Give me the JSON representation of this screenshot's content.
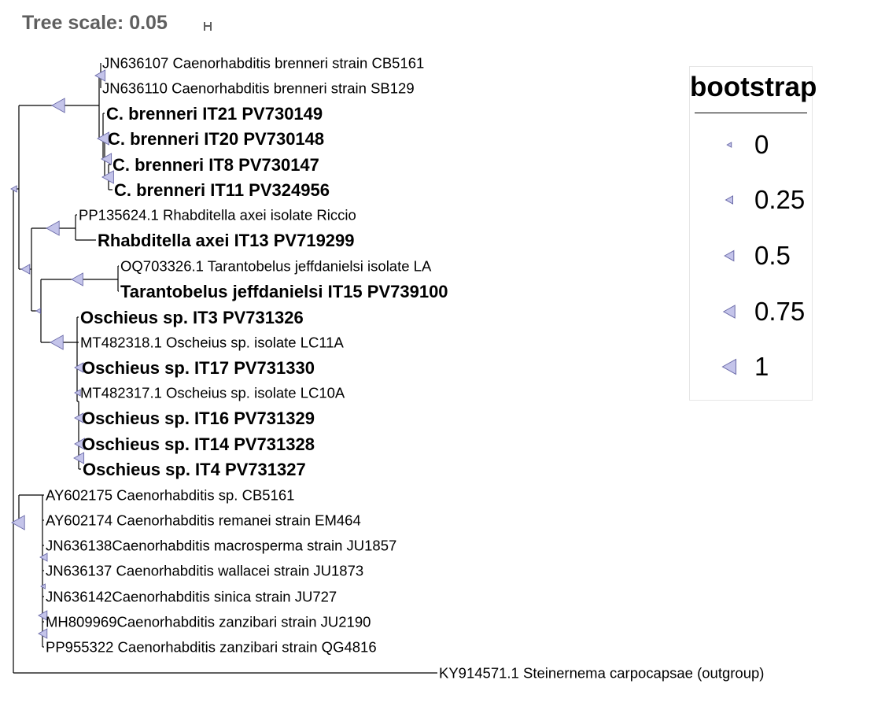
{
  "tree_scale": {
    "label": "Tree scale: 0.05"
  },
  "legend": {
    "title": "bootstrap",
    "items": [
      "0",
      "0.25",
      "0.5",
      "0.75",
      "1"
    ],
    "marker_fill": "#c4c4ea",
    "marker_stroke": "#6a6aa8"
  },
  "tree": {
    "line_color": "#000000",
    "taxa": [
      {
        "label": "JN636107 Caenorhabditis brenneri strain CB5161",
        "bold": false
      },
      {
        "label": "JN636110 Caenorhabditis brenneri strain SB129",
        "bold": false
      },
      {
        "label": "C. brenneri IT21 PV730149",
        "bold": true
      },
      {
        "label": "C. brenneri IT20 PV730148",
        "bold": true
      },
      {
        "label": "C. brenneri IT8 PV730147",
        "bold": true
      },
      {
        "label": "C. brenneri IT11 PV324956",
        "bold": true
      },
      {
        "label": "PP135624.1 Rhabditella axei isolate Riccio",
        "bold": false
      },
      {
        "label": "Rhabditella axei IT13 PV719299",
        "bold": true
      },
      {
        "label": "OQ703326.1 Tarantobelus jeffdanielsi isolate LA",
        "bold": false
      },
      {
        "label": "Tarantobelus jeffdanielsi IT15 PV739100",
        "bold": true
      },
      {
        "label": "Oschieus sp. IT3 PV731326",
        "bold": true
      },
      {
        "label": "MT482318.1 Oscheius sp. isolate LC11A",
        "bold": false
      },
      {
        "label": "Oschieus sp. IT17 PV731330",
        "bold": true
      },
      {
        "label": "MT482317.1 Oscheius sp. isolate LC10A",
        "bold": false
      },
      {
        "label": "Oschieus sp. IT16 PV731329",
        "bold": true
      },
      {
        "label": "Oschieus sp. IT14 PV731328",
        "bold": true
      },
      {
        "label": "Oschieus sp. IT4 PV731327",
        "bold": true
      },
      {
        "label": "AY602175 Caenorhabditis sp. CB5161",
        "bold": false
      },
      {
        "label": "AY602174 Caenorhabditis remanei strain EM464",
        "bold": false
      },
      {
        "label": "JN636138Caenorhabditis macrosperma strain JU1857",
        "bold": false
      },
      {
        "label": "JN636137 Caenorhabditis wallacei strain JU1873",
        "bold": false
      },
      {
        "label": "JN636142Caenorhabditis sinica strain JU727",
        "bold": false
      },
      {
        "label": "MH809969Caenorhabditis zanzibari strain JU2190",
        "bold": false
      },
      {
        "label": "PP955322 Caenorhabditis zanzibari strain QG4816",
        "bold": false
      },
      {
        "label": "KY914571.1 Steinernema carpocapsae (outgroup)",
        "bold": false
      }
    ]
  }
}
